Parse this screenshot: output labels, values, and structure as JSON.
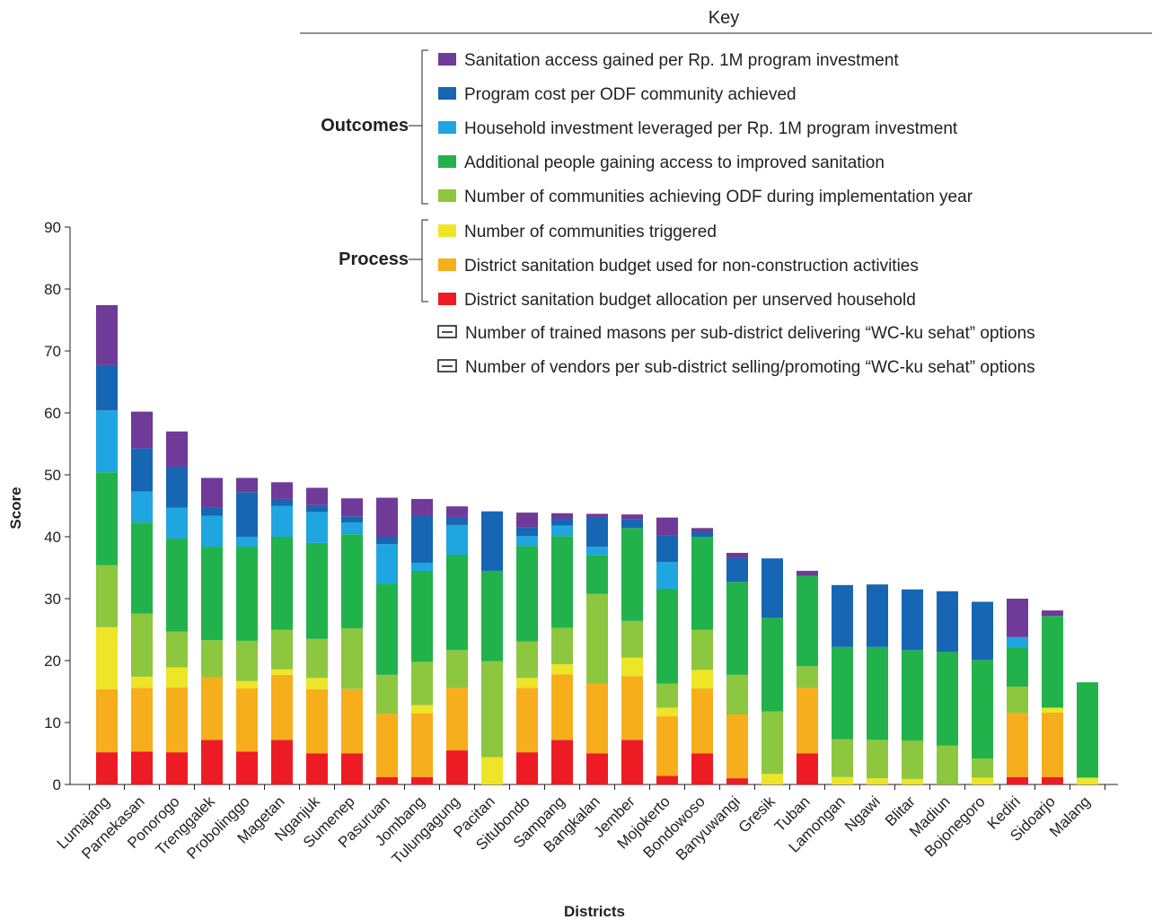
{
  "chart_data": {
    "type": "bar",
    "stacked": true,
    "xlabel": "Districts",
    "ylabel": "Score",
    "ylim": [
      0,
      90
    ],
    "yticks": [
      0,
      10,
      20,
      30,
      40,
      50,
      60,
      70,
      80,
      90
    ],
    "grid": false,
    "legend_position": "top-right",
    "categories": [
      "Lumajang",
      "Parnekasan",
      "Ponorogo",
      "Trenggalek",
      "Probolinggo",
      "Magetan",
      "Nganjuk",
      "Sumenep",
      "Pasuruan",
      "Jombang",
      "Tulungagung",
      "Pacitan",
      "Situbondo",
      "Sampang",
      "Bangkalan",
      "Jember",
      "Mojokerto",
      "Bondowoso",
      "Banyuwangi",
      "Gresik",
      "Tuban",
      "Lamongan",
      "Ngawi",
      "Blitar",
      "Madiun",
      "Bojonegoro",
      "Kediri",
      "Sidoarjo",
      "Malang"
    ],
    "series": [
      {
        "name": "District sanitation budget allocation per unserved household",
        "color": "#ed1c24",
        "values": [
          5.2,
          5.3,
          5.2,
          7.2,
          5.3,
          7.2,
          5.0,
          5.0,
          1.2,
          1.2,
          5.5,
          0,
          5.2,
          7.2,
          5.0,
          7.2,
          1.4,
          5.0,
          1.0,
          0,
          5.0,
          0,
          0,
          0,
          0,
          0,
          1.2,
          1.2,
          0
        ]
      },
      {
        "name": "District sanitation budget used for non-construction activities",
        "color": "#f6ae1c",
        "values": [
          10.2,
          10.3,
          10.5,
          10.1,
          10.2,
          10.5,
          10.4,
          10.4,
          10.2,
          10.3,
          10.1,
          0,
          10.4,
          10.6,
          11.3,
          10.3,
          9.6,
          10.5,
          10.3,
          0,
          10.6,
          0,
          0,
          0,
          0,
          0,
          10.3,
          10.4,
          0
        ]
      },
      {
        "name": "Number of communities triggered",
        "color": "#eee526",
        "values": [
          10,
          1.8,
          3.2,
          0,
          1.2,
          0.9,
          1.8,
          0,
          0,
          1.3,
          0,
          4.4,
          1.6,
          1.6,
          0,
          3.0,
          1.4,
          3.0,
          0,
          1.7,
          0,
          1.2,
          1.0,
          0.9,
          0,
          1.1,
          0,
          0.8,
          1.1
        ]
      },
      {
        "name": "Number of communities achieving ODF during implementation year",
        "color": "#8dc63f",
        "values": [
          10,
          10.2,
          5.8,
          6.0,
          6.5,
          6.4,
          6.3,
          9.8,
          6.3,
          7.0,
          6.1,
          15.5,
          5.9,
          5.9,
          14.5,
          5.9,
          3.9,
          6.5,
          6.4,
          10.1,
          3.5,
          6.1,
          6.2,
          6.2,
          6.3,
          3.1,
          4.3,
          0,
          0
        ]
      },
      {
        "name": "Additional people gaining access to improved sanitation",
        "color": "#21b24b",
        "values": [
          15,
          14.7,
          15,
          15.1,
          15.2,
          15.0,
          15.5,
          15.2,
          14.7,
          14.7,
          15.4,
          14.6,
          15.4,
          14.8,
          6.2,
          15.0,
          15.3,
          15.0,
          15.0,
          15.1,
          14.6,
          14.9,
          15.0,
          14.6,
          15.1,
          15.9,
          6.3,
          14.8,
          15.4
        ]
      },
      {
        "name": "Household investment leveraged per Rp. 1M program investment",
        "color": "#1fa5e0",
        "values": [
          10,
          5.0,
          5.0,
          5.0,
          1.6,
          5.0,
          5.0,
          1.9,
          6.4,
          1.3,
          4.8,
          0,
          1.6,
          1.7,
          1.4,
          0,
          4.3,
          0,
          0,
          0,
          0,
          0,
          0,
          0,
          0,
          0,
          1.7,
          0,
          0
        ]
      },
      {
        "name": "Program cost per ODF community achieved",
        "color": "#1666b3",
        "values": [
          7.3,
          7.0,
          6.6,
          1.3,
          7.2,
          1.1,
          1.1,
          1.0,
          1.2,
          7.6,
          1.3,
          9.6,
          1.4,
          1.1,
          4.8,
          1.4,
          4.3,
          0.8,
          3.9,
          9.6,
          0,
          10.0,
          10.1,
          9.8,
          9.8,
          9.4,
          0,
          0,
          0
        ]
      },
      {
        "name": "Sanitation access gained per Rp. 1M program investment",
        "color": "#6f3a98",
        "values": [
          9.7,
          5.9,
          5.7,
          4.8,
          2.3,
          2.7,
          2.8,
          2.9,
          6.3,
          2.7,
          1.7,
          0,
          2.4,
          0.9,
          0.5,
          0.8,
          2.9,
          0.6,
          0.8,
          0,
          0.8,
          0,
          0,
          0,
          0,
          0,
          6.2,
          0.9,
          0
        ]
      }
    ]
  },
  "legend": {
    "title": "Key",
    "outcomes_label": "Outcomes",
    "process_label": "Process",
    "items": [
      {
        "label": "Sanitation access gained per Rp. 1M program investment",
        "color": "#6f3a98"
      },
      {
        "label": "Program cost per ODF community achieved",
        "color": "#1666b3"
      },
      {
        "label": "Household investment leveraged per Rp. 1M program investment",
        "color": "#1fa5e0"
      },
      {
        "label": "Additional people gaining access to improved sanitation",
        "color": "#21b24b"
      },
      {
        "label": "Number of communities achieving ODF during implementation year",
        "color": "#8dc63f"
      },
      {
        "label": "Number of communities triggered",
        "color": "#eee526"
      },
      {
        "label": "District sanitation budget used for non-construction activities",
        "color": "#f6ae1c"
      },
      {
        "label": "District sanitation budget allocation per unserved household",
        "color": "#ed1c24"
      },
      {
        "label": "Number of trained masons per sub-district delivering “WC-ku sehat” options",
        "color": "outline"
      },
      {
        "label": "Number of vendors per sub-district selling/promoting “WC-ku sehat” options",
        "color": "outline"
      }
    ]
  }
}
